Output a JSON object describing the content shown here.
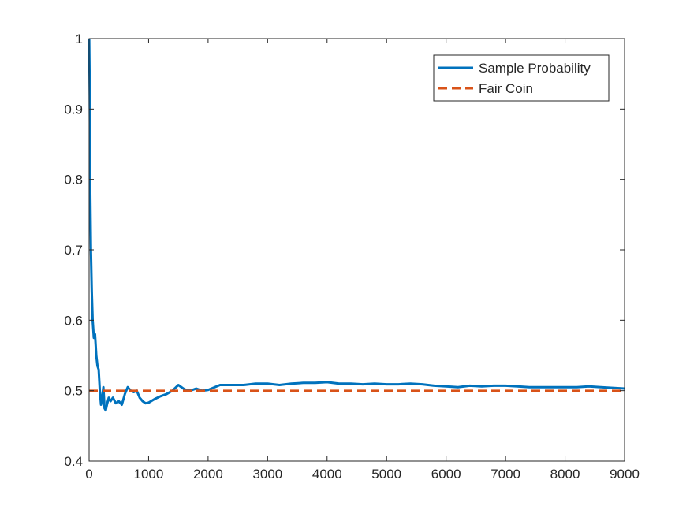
{
  "chart_data": {
    "type": "line",
    "title": "",
    "xlabel": "",
    "ylabel": "",
    "xlim": [
      0,
      9000
    ],
    "ylim": [
      0.4,
      1
    ],
    "x_ticks": [
      0,
      1000,
      2000,
      3000,
      4000,
      5000,
      6000,
      7000,
      8000,
      9000
    ],
    "y_ticks": [
      0.4,
      0.5,
      0.6,
      0.7,
      0.8,
      0.9,
      1
    ],
    "x_tick_labels": [
      "0",
      "1000",
      "2000",
      "3000",
      "4000",
      "5000",
      "6000",
      "7000",
      "8000",
      "9000"
    ],
    "y_tick_labels": [
      "0.4",
      "0.5",
      "0.6",
      "0.7",
      "0.8",
      "0.9",
      "1"
    ],
    "grid": false,
    "legend_position": "top-right",
    "series": [
      {
        "name": "Sample Probability",
        "color": "#0072BD",
        "style": "solid",
        "x": [
          1,
          10,
          20,
          30,
          45,
          60,
          80,
          100,
          120,
          140,
          160,
          180,
          200,
          220,
          240,
          260,
          280,
          300,
          330,
          360,
          400,
          450,
          500,
          550,
          600,
          650,
          700,
          750,
          800,
          850,
          900,
          950,
          1000,
          1100,
          1200,
          1300,
          1400,
          1500,
          1600,
          1700,
          1800,
          1900,
          2000,
          2200,
          2400,
          2600,
          2800,
          3000,
          3200,
          3400,
          3600,
          3800,
          4000,
          4200,
          4400,
          4600,
          4800,
          5000,
          5200,
          5400,
          5600,
          5800,
          6000,
          6200,
          6400,
          6600,
          6800,
          7000,
          7200,
          7400,
          7600,
          7800,
          8000,
          8200,
          8400,
          8600,
          8800,
          9000
        ],
        "values": [
          1.0,
          0.92,
          0.78,
          0.7,
          0.64,
          0.6,
          0.575,
          0.58,
          0.55,
          0.535,
          0.53,
          0.5,
          0.48,
          0.49,
          0.505,
          0.475,
          0.472,
          0.48,
          0.49,
          0.485,
          0.49,
          0.482,
          0.485,
          0.48,
          0.495,
          0.505,
          0.5,
          0.498,
          0.5,
          0.49,
          0.485,
          0.482,
          0.483,
          0.488,
          0.492,
          0.495,
          0.5,
          0.508,
          0.502,
          0.5,
          0.503,
          0.5,
          0.501,
          0.508,
          0.508,
          0.508,
          0.51,
          0.51,
          0.508,
          0.51,
          0.511,
          0.511,
          0.512,
          0.51,
          0.51,
          0.509,
          0.51,
          0.509,
          0.509,
          0.51,
          0.509,
          0.507,
          0.506,
          0.505,
          0.507,
          0.506,
          0.507,
          0.507,
          0.506,
          0.505,
          0.505,
          0.505,
          0.505,
          0.505,
          0.506,
          0.505,
          0.504,
          0.503
        ]
      },
      {
        "name": "Fair Coin",
        "color": "#D95319",
        "style": "dashed",
        "x": [
          0,
          9000
        ],
        "values": [
          0.5,
          0.5
        ]
      }
    ]
  }
}
